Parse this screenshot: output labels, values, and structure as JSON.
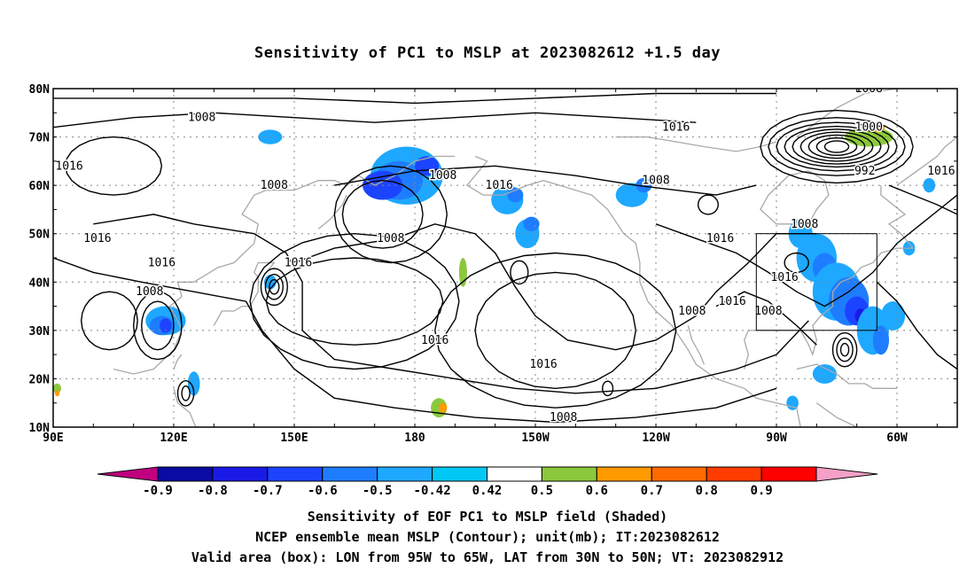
{
  "title": "Sensitivity of PC1 to MSLP at 2023082612 +1.5 day",
  "lat_labels": [
    "80N",
    "70N",
    "60N",
    "50N",
    "40N",
    "30N",
    "20N",
    "10N"
  ],
  "lon_labels": [
    "90E",
    "120E",
    "150E",
    "180",
    "150W",
    "120W",
    "90W",
    "60W"
  ],
  "colorbar": {
    "labels": [
      "-0.9",
      "-0.8",
      "-0.7",
      "-0.6",
      "-0.5",
      "-0.42",
      "0.42",
      "0.5",
      "0.6",
      "0.7",
      "0.8",
      "0.9"
    ],
    "colors": [
      "#c0007f",
      "#0a0aa5",
      "#1a1ae6",
      "#1c44ff",
      "#1e7dff",
      "#1ea8ff",
      "#00c8f5",
      "#ffffff",
      "#8cc83c",
      "#ff9a00",
      "#ff6a00",
      "#ff3c00",
      "#ff0000",
      "#f5a0c8"
    ]
  },
  "contour_labels": [
    {
      "text": "1008",
      "lon": 127,
      "lat": 74
    },
    {
      "text": "1016",
      "lon": 94,
      "lat": 64
    },
    {
      "text": "1008",
      "lon": 145,
      "lat": 60
    },
    {
      "text": "1008",
      "lon": 174,
      "lat": 49
    },
    {
      "text": "1016",
      "lon": 101,
      "lat": 49
    },
    {
      "text": "1016",
      "lon": 117,
      "lat": 44
    },
    {
      "text": "1016",
      "lon": 151,
      "lat": 44
    },
    {
      "text": "1008",
      "lon": 114,
      "lat": 38
    },
    {
      "text": "1008",
      "lon": -173,
      "lat": 62
    },
    {
      "text": "1016",
      "lon": -159,
      "lat": 60
    },
    {
      "text": "1016",
      "lon": -175,
      "lat": 28
    },
    {
      "text": "1016",
      "lon": -148,
      "lat": 23
    },
    {
      "text": "1008",
      "lon": -143,
      "lat": 12
    },
    {
      "text": "1016",
      "lon": -115,
      "lat": 72
    },
    {
      "text": "1008",
      "lon": -120,
      "lat": 61
    },
    {
      "text": "1016",
      "lon": -104,
      "lat": 49
    },
    {
      "text": "1016",
      "lon": -101,
      "lat": 36
    },
    {
      "text": "1008",
      "lon": -111,
      "lat": 34
    },
    {
      "text": "1008",
      "lon": -92,
      "lat": 34
    },
    {
      "text": "1008",
      "lon": -83,
      "lat": 52
    },
    {
      "text": "1016",
      "lon": -88,
      "lat": 41
    },
    {
      "text": "1008",
      "lon": -67,
      "lat": 80
    },
    {
      "text": "1000",
      "lon": -67,
      "lat": 72
    },
    {
      "text": "992",
      "lon": -68,
      "lat": 63
    },
    {
      "text": "1016",
      "lon": -49,
      "lat": 63
    }
  ],
  "captions": {
    "line1": "Sensitivity of EOF PC1 to MSLP field (Shaded)",
    "line2": "NCEP ensemble mean MSLP (Contour); unit(mb); IT:2023082612",
    "line3": "Valid area (box): LON from 95W to 65W, LAT from 30N to 50N; VT: 2023082912"
  },
  "valid_box": {
    "lon_min": -95,
    "lon_max": -65,
    "lat_min": 30,
    "lat_max": 50
  },
  "map_extent": {
    "lon_min": 90,
    "lon_max": 315,
    "lat_min": 10,
    "lat_max": 80
  }
}
